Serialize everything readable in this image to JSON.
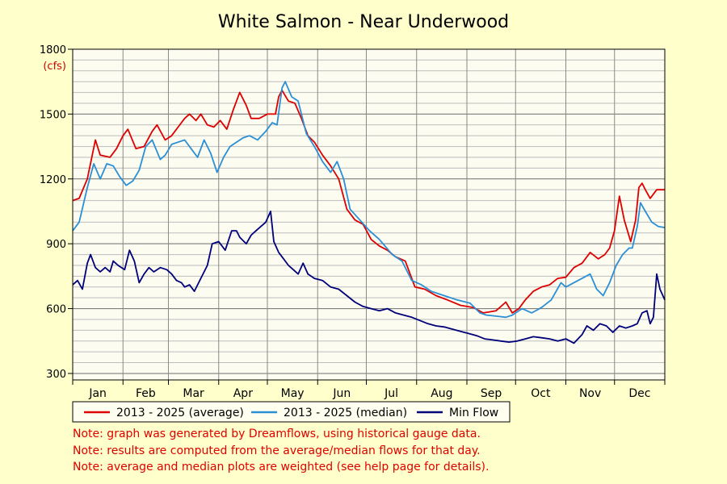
{
  "chart_data": {
    "type": "line",
    "title": "White Salmon - Near Underwood",
    "unit_label": "(cfs)",
    "xlabel": "",
    "ylabel": "",
    "ylim": [
      270,
      1800
    ],
    "y_ticks": [
      300,
      600,
      900,
      1200,
      1500,
      1800
    ],
    "x_ticks": [
      "Jan",
      "Feb",
      "Mar",
      "Apr",
      "May",
      "Jun",
      "Jul",
      "Aug",
      "Sep",
      "Oct",
      "Nov",
      "Dec"
    ],
    "x_unit": "day of year",
    "x_range": [
      1,
      366
    ],
    "grid": true,
    "legend_position": "bottom",
    "series": [
      {
        "name": "2013 - 2025 (average)",
        "color": "#dd0000",
        "points": [
          [
            1,
            1100
          ],
          [
            5,
            1110
          ],
          [
            10,
            1200
          ],
          [
            15,
            1380
          ],
          [
            18,
            1310
          ],
          [
            24,
            1300
          ],
          [
            28,
            1340
          ],
          [
            32,
            1400
          ],
          [
            35,
            1430
          ],
          [
            40,
            1340
          ],
          [
            45,
            1350
          ],
          [
            50,
            1420
          ],
          [
            53,
            1450
          ],
          [
            58,
            1380
          ],
          [
            62,
            1400
          ],
          [
            66,
            1440
          ],
          [
            70,
            1480
          ],
          [
            73,
            1500
          ],
          [
            77,
            1470
          ],
          [
            80,
            1500
          ],
          [
            84,
            1450
          ],
          [
            88,
            1440
          ],
          [
            92,
            1470
          ],
          [
            96,
            1430
          ],
          [
            100,
            1520
          ],
          [
            104,
            1600
          ],
          [
            108,
            1540
          ],
          [
            111,
            1480
          ],
          [
            116,
            1480
          ],
          [
            121,
            1500
          ],
          [
            126,
            1500
          ],
          [
            128,
            1580
          ],
          [
            130,
            1610
          ],
          [
            134,
            1560
          ],
          [
            138,
            1550
          ],
          [
            142,
            1480
          ],
          [
            146,
            1400
          ],
          [
            150,
            1370
          ],
          [
            155,
            1310
          ],
          [
            160,
            1260
          ],
          [
            165,
            1200
          ],
          [
            170,
            1060
          ],
          [
            175,
            1010
          ],
          [
            180,
            990
          ],
          [
            185,
            920
          ],
          [
            190,
            890
          ],
          [
            195,
            870
          ],
          [
            200,
            840
          ],
          [
            206,
            820
          ],
          [
            212,
            700
          ],
          [
            218,
            690
          ],
          [
            225,
            660
          ],
          [
            232,
            640
          ],
          [
            240,
            615
          ],
          [
            248,
            605
          ],
          [
            254,
            580
          ],
          [
            258,
            585
          ],
          [
            262,
            590
          ],
          [
            268,
            630
          ],
          [
            272,
            580
          ],
          [
            276,
            600
          ],
          [
            280,
            640
          ],
          [
            285,
            680
          ],
          [
            290,
            700
          ],
          [
            295,
            710
          ],
          [
            300,
            740
          ],
          [
            305,
            745
          ],
          [
            310,
            790
          ],
          [
            315,
            810
          ],
          [
            320,
            860
          ],
          [
            325,
            830
          ],
          [
            329,
            850
          ],
          [
            332,
            880
          ],
          [
            335,
            960
          ],
          [
            338,
            1120
          ],
          [
            341,
            1010
          ],
          [
            345,
            910
          ],
          [
            348,
            1010
          ],
          [
            350,
            1160
          ],
          [
            352,
            1180
          ],
          [
            354,
            1150
          ],
          [
            357,
            1110
          ],
          [
            361,
            1150
          ],
          [
            366,
            1150
          ]
        ]
      },
      {
        "name": "2013 - 2025 (median)",
        "color": "#2b8fd6",
        "points": [
          [
            1,
            960
          ],
          [
            5,
            1000
          ],
          [
            10,
            1160
          ],
          [
            14,
            1270
          ],
          [
            18,
            1200
          ],
          [
            22,
            1270
          ],
          [
            26,
            1260
          ],
          [
            30,
            1210
          ],
          [
            34,
            1170
          ],
          [
            38,
            1190
          ],
          [
            42,
            1240
          ],
          [
            46,
            1350
          ],
          [
            50,
            1380
          ],
          [
            55,
            1290
          ],
          [
            58,
            1310
          ],
          [
            62,
            1360
          ],
          [
            66,
            1370
          ],
          [
            70,
            1380
          ],
          [
            74,
            1340
          ],
          [
            78,
            1300
          ],
          [
            82,
            1380
          ],
          [
            86,
            1320
          ],
          [
            90,
            1230
          ],
          [
            94,
            1300
          ],
          [
            98,
            1350
          ],
          [
            102,
            1370
          ],
          [
            106,
            1390
          ],
          [
            110,
            1400
          ],
          [
            115,
            1380
          ],
          [
            120,
            1420
          ],
          [
            124,
            1460
          ],
          [
            127,
            1450
          ],
          [
            130,
            1620
          ],
          [
            132,
            1650
          ],
          [
            136,
            1580
          ],
          [
            140,
            1560
          ],
          [
            145,
            1410
          ],
          [
            150,
            1350
          ],
          [
            155,
            1280
          ],
          [
            160,
            1230
          ],
          [
            164,
            1280
          ],
          [
            168,
            1200
          ],
          [
            172,
            1060
          ],
          [
            178,
            1010
          ],
          [
            184,
            960
          ],
          [
            190,
            920
          ],
          [
            198,
            850
          ],
          [
            204,
            820
          ],
          [
            210,
            730
          ],
          [
            216,
            710
          ],
          [
            222,
            680
          ],
          [
            230,
            660
          ],
          [
            238,
            640
          ],
          [
            246,
            625
          ],
          [
            252,
            580
          ],
          [
            256,
            570
          ],
          [
            262,
            565
          ],
          [
            268,
            560
          ],
          [
            272,
            570
          ],
          [
            278,
            600
          ],
          [
            284,
            580
          ],
          [
            290,
            605
          ],
          [
            296,
            640
          ],
          [
            302,
            720
          ],
          [
            305,
            700
          ],
          [
            310,
            720
          ],
          [
            315,
            740
          ],
          [
            320,
            760
          ],
          [
            324,
            690
          ],
          [
            328,
            660
          ],
          [
            332,
            720
          ],
          [
            336,
            800
          ],
          [
            340,
            850
          ],
          [
            344,
            880
          ],
          [
            346,
            880
          ],
          [
            349,
            980
          ],
          [
            351,
            1090
          ],
          [
            354,
            1050
          ],
          [
            358,
            1000
          ],
          [
            362,
            980
          ],
          [
            366,
            975
          ]
        ]
      },
      {
        "name": "Min Flow",
        "color": "#00007a",
        "points": [
          [
            1,
            710
          ],
          [
            4,
            730
          ],
          [
            7,
            690
          ],
          [
            10,
            810
          ],
          [
            12,
            850
          ],
          [
            15,
            790
          ],
          [
            18,
            770
          ],
          [
            21,
            790
          ],
          [
            24,
            770
          ],
          [
            26,
            820
          ],
          [
            29,
            800
          ],
          [
            33,
            780
          ],
          [
            36,
            870
          ],
          [
            39,
            820
          ],
          [
            42,
            720
          ],
          [
            45,
            760
          ],
          [
            48,
            790
          ],
          [
            51,
            770
          ],
          [
            55,
            790
          ],
          [
            59,
            780
          ],
          [
            62,
            760
          ],
          [
            65,
            730
          ],
          [
            68,
            720
          ],
          [
            70,
            700
          ],
          [
            73,
            710
          ],
          [
            76,
            680
          ],
          [
            80,
            740
          ],
          [
            84,
            800
          ],
          [
            87,
            900
          ],
          [
            91,
            910
          ],
          [
            95,
            870
          ],
          [
            99,
            960
          ],
          [
            102,
            960
          ],
          [
            104,
            930
          ],
          [
            108,
            900
          ],
          [
            111,
            940
          ],
          [
            114,
            960
          ],
          [
            117,
            980
          ],
          [
            120,
            1000
          ],
          [
            123,
            1050
          ],
          [
            125,
            910
          ],
          [
            128,
            860
          ],
          [
            131,
            830
          ],
          [
            134,
            800
          ],
          [
            137,
            780
          ],
          [
            140,
            760
          ],
          [
            143,
            810
          ],
          [
            146,
            760
          ],
          [
            150,
            740
          ],
          [
            155,
            730
          ],
          [
            160,
            700
          ],
          [
            165,
            690
          ],
          [
            170,
            660
          ],
          [
            175,
            630
          ],
          [
            180,
            610
          ],
          [
            185,
            600
          ],
          [
            190,
            590
          ],
          [
            195,
            600
          ],
          [
            200,
            580
          ],
          [
            205,
            570
          ],
          [
            210,
            560
          ],
          [
            215,
            545
          ],
          [
            220,
            530
          ],
          [
            225,
            520
          ],
          [
            230,
            515
          ],
          [
            235,
            505
          ],
          [
            240,
            495
          ],
          [
            245,
            485
          ],
          [
            250,
            475
          ],
          [
            255,
            460
          ],
          [
            260,
            455
          ],
          [
            265,
            450
          ],
          [
            270,
            445
          ],
          [
            275,
            450
          ],
          [
            280,
            460
          ],
          [
            285,
            470
          ],
          [
            290,
            465
          ],
          [
            295,
            460
          ],
          [
            300,
            450
          ],
          [
            305,
            460
          ],
          [
            310,
            440
          ],
          [
            315,
            480
          ],
          [
            318,
            520
          ],
          [
            322,
            500
          ],
          [
            326,
            530
          ],
          [
            330,
            520
          ],
          [
            334,
            490
          ],
          [
            338,
            520
          ],
          [
            342,
            510
          ],
          [
            346,
            520
          ],
          [
            349,
            530
          ],
          [
            352,
            580
          ],
          [
            355,
            590
          ],
          [
            357,
            530
          ],
          [
            359,
            560
          ],
          [
            361,
            760
          ],
          [
            363,
            690
          ],
          [
            366,
            640
          ]
        ]
      }
    ]
  },
  "notes": [
    "Note: graph was generated by Dreamflows, using historical gauge data.",
    "Note: results are computed from the average/median flows for that day.",
    "Note: average and median plots are weighted (see help page for details)."
  ]
}
